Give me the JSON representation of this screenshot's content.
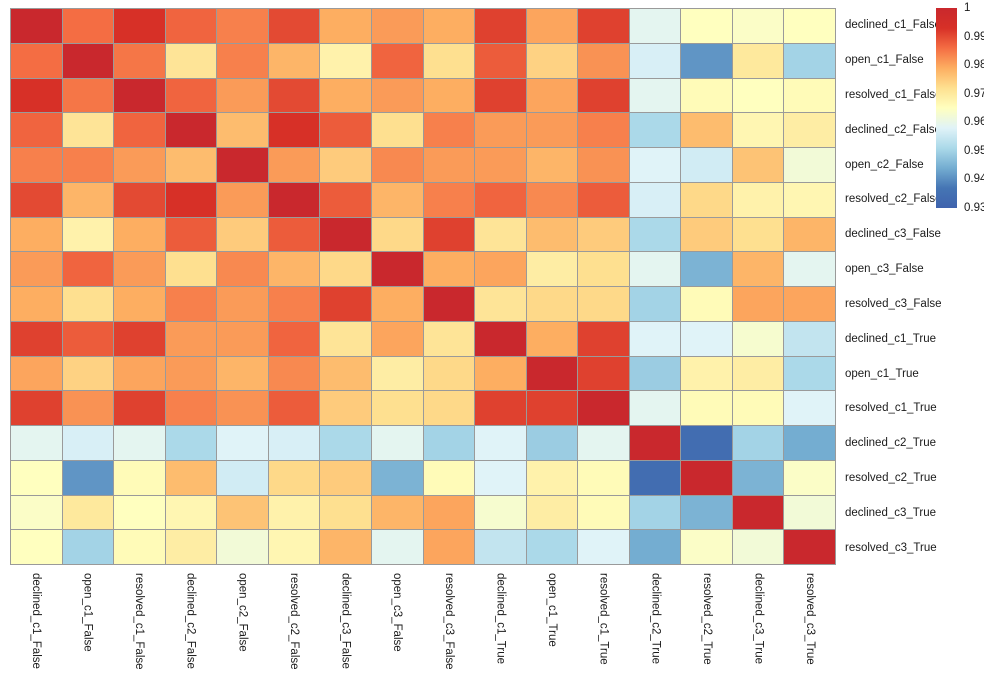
{
  "figure": {
    "background": "#ffffff",
    "grid_line_color": "#9a9a9a",
    "label_color": "#1a1a1a"
  },
  "chart_data": {
    "type": "heatmap",
    "title": "",
    "grid": "on",
    "legend_position": "top-right",
    "value_range": [
      0.93,
      1.0
    ],
    "labels": [
      "declined_c1_False",
      "open_c1_False",
      "resolved_c1_False",
      "declined_c2_False",
      "open_c2_False",
      "resolved_c2_False",
      "declined_c3_False",
      "open_c3_False",
      "resolved_c3_False",
      "declined_c1_True",
      "open_c1_True",
      "resolved_c1_True",
      "declined_c2_True",
      "resolved_c2_True",
      "declined_c3_True",
      "resolved_c3_True"
    ],
    "values": [
      [
        1.0,
        0.986,
        0.993,
        0.987,
        0.984,
        0.99,
        0.979,
        0.981,
        0.979,
        0.991,
        0.98,
        0.991,
        0.959,
        0.965,
        0.964,
        0.965
      ],
      [
        0.986,
        1.0,
        0.985,
        0.971,
        0.984,
        0.978,
        0.968,
        0.987,
        0.972,
        0.988,
        0.974,
        0.982,
        0.957,
        0.941,
        0.97,
        0.95
      ],
      [
        0.993,
        0.985,
        1.0,
        0.987,
        0.981,
        0.99,
        0.979,
        0.981,
        0.979,
        0.991,
        0.98,
        0.991,
        0.959,
        0.966,
        0.965,
        0.966
      ],
      [
        0.987,
        0.971,
        0.987,
        1.0,
        0.977,
        0.993,
        0.988,
        0.972,
        0.984,
        0.981,
        0.981,
        0.984,
        0.951,
        0.977,
        0.967,
        0.969
      ],
      [
        0.984,
        0.984,
        0.981,
        0.977,
        1.0,
        0.981,
        0.975,
        0.983,
        0.981,
        0.981,
        0.978,
        0.982,
        0.958,
        0.956,
        0.976,
        0.962
      ],
      [
        0.99,
        0.978,
        0.99,
        0.993,
        0.981,
        1.0,
        0.988,
        0.978,
        0.984,
        0.987,
        0.983,
        0.988,
        0.957,
        0.973,
        0.968,
        0.967
      ],
      [
        0.979,
        0.968,
        0.979,
        0.988,
        0.975,
        0.988,
        1.0,
        0.973,
        0.991,
        0.971,
        0.977,
        0.975,
        0.951,
        0.975,
        0.972,
        0.978
      ],
      [
        0.981,
        0.987,
        0.981,
        0.972,
        0.983,
        0.978,
        0.973,
        1.0,
        0.979,
        0.98,
        0.969,
        0.972,
        0.959,
        0.945,
        0.978,
        0.959
      ],
      [
        0.979,
        0.972,
        0.979,
        0.984,
        0.981,
        0.984,
        0.991,
        0.979,
        1.0,
        0.971,
        0.973,
        0.973,
        0.95,
        0.966,
        0.98,
        0.98
      ],
      [
        0.991,
        0.988,
        0.991,
        0.981,
        0.981,
        0.987,
        0.971,
        0.98,
        0.971,
        1.0,
        0.979,
        0.991,
        0.958,
        0.958,
        0.963,
        0.954
      ],
      [
        0.98,
        0.974,
        0.98,
        0.981,
        0.978,
        0.983,
        0.977,
        0.969,
        0.973,
        0.979,
        1.0,
        0.991,
        0.949,
        0.968,
        0.969,
        0.951
      ],
      [
        0.991,
        0.982,
        0.991,
        0.984,
        0.982,
        0.988,
        0.975,
        0.972,
        0.973,
        0.991,
        0.991,
        1.0,
        0.959,
        0.966,
        0.966,
        0.958
      ],
      [
        0.959,
        0.957,
        0.959,
        0.951,
        0.958,
        0.957,
        0.951,
        0.959,
        0.95,
        0.958,
        0.949,
        0.959,
        1.0,
        0.934,
        0.95,
        0.944
      ],
      [
        0.965,
        0.941,
        0.966,
        0.977,
        0.956,
        0.973,
        0.975,
        0.945,
        0.966,
        0.958,
        0.968,
        0.966,
        0.934,
        1.0,
        0.945,
        0.964
      ],
      [
        0.964,
        0.97,
        0.965,
        0.967,
        0.976,
        0.968,
        0.972,
        0.978,
        0.98,
        0.963,
        0.969,
        0.966,
        0.95,
        0.945,
        1.0,
        0.962
      ],
      [
        0.965,
        0.95,
        0.966,
        0.969,
        0.962,
        0.967,
        0.978,
        0.959,
        0.98,
        0.954,
        0.951,
        0.958,
        0.944,
        0.964,
        0.962,
        1.0
      ]
    ],
    "colorbar": {
      "colormap": "RdYlBu_r",
      "tick_labels": [
        "1",
        "0.99",
        "0.98",
        "0.97",
        "0.96",
        "0.95",
        "0.94",
        "0.93"
      ],
      "tick_values": [
        1,
        0.99,
        0.98,
        0.97,
        0.96,
        0.95,
        0.94,
        0.93
      ],
      "stops": [
        {
          "v": 0.93,
          "c": "#3f63ad"
        },
        {
          "v": 0.937,
          "c": "#4575b4"
        },
        {
          "v": 0.944,
          "c": "#74add1"
        },
        {
          "v": 0.951,
          "c": "#abd9e9"
        },
        {
          "v": 0.958,
          "c": "#e0f3f8"
        },
        {
          "v": 0.965,
          "c": "#ffffbf"
        },
        {
          "v": 0.972,
          "c": "#fee090"
        },
        {
          "v": 0.979,
          "c": "#fdae61"
        },
        {
          "v": 0.986,
          "c": "#f46d43"
        },
        {
          "v": 0.993,
          "c": "#d73027"
        },
        {
          "v": 1.0,
          "c": "#c9282d"
        }
      ]
    }
  }
}
